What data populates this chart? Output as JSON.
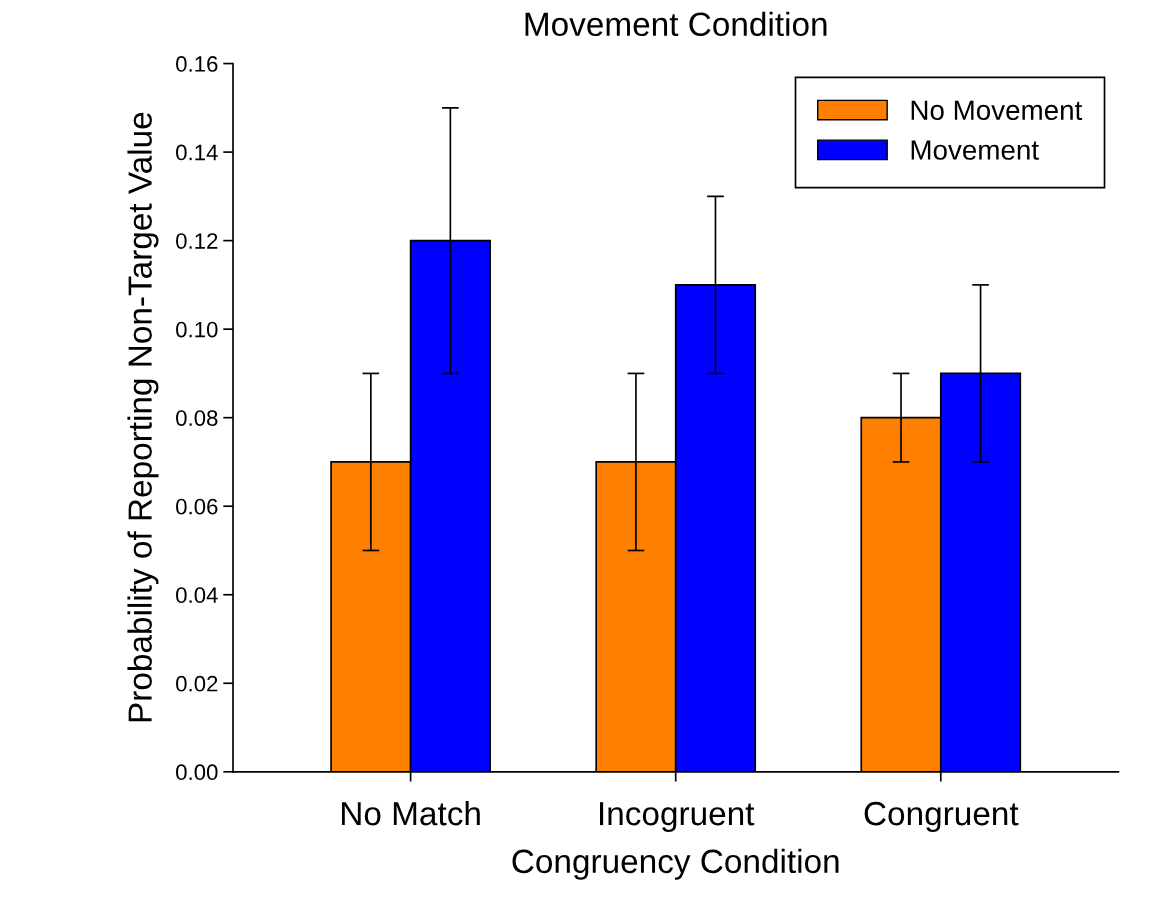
{
  "chart_data": {
    "type": "bar",
    "title": "Movement Condition",
    "xlabel": "Congruency Condition",
    "ylabel": "Probability of Reporting Non-Target Value",
    "categories": [
      "No Match",
      "Incogruent",
      "Congruent"
    ],
    "series": [
      {
        "name": "No Movement",
        "color": "#ff8000",
        "values": [
          0.07,
          0.07,
          0.08
        ],
        "errors": [
          0.02,
          0.02,
          0.01
        ]
      },
      {
        "name": "Movement",
        "color": "#0000ff",
        "values": [
          0.12,
          0.11,
          0.09
        ],
        "errors": [
          0.03,
          0.02,
          0.02
        ]
      }
    ],
    "ylim": [
      0,
      0.16
    ],
    "yticks": [
      {
        "value": 0,
        "label": "0.00"
      },
      {
        "value": 0.02,
        "label": "0.02"
      },
      {
        "value": 0.04,
        "label": "0.04"
      },
      {
        "value": 0.06,
        "label": "0.06"
      },
      {
        "value": 0.08,
        "label": "0.08"
      },
      {
        "value": 0.1,
        "label": "0.10"
      },
      {
        "value": 0.12,
        "label": "0.12"
      },
      {
        "value": 0.14,
        "label": "0.14"
      },
      {
        "value": 0.16,
        "label": "0.16"
      }
    ],
    "legend": "top right",
    "grid": false
  }
}
